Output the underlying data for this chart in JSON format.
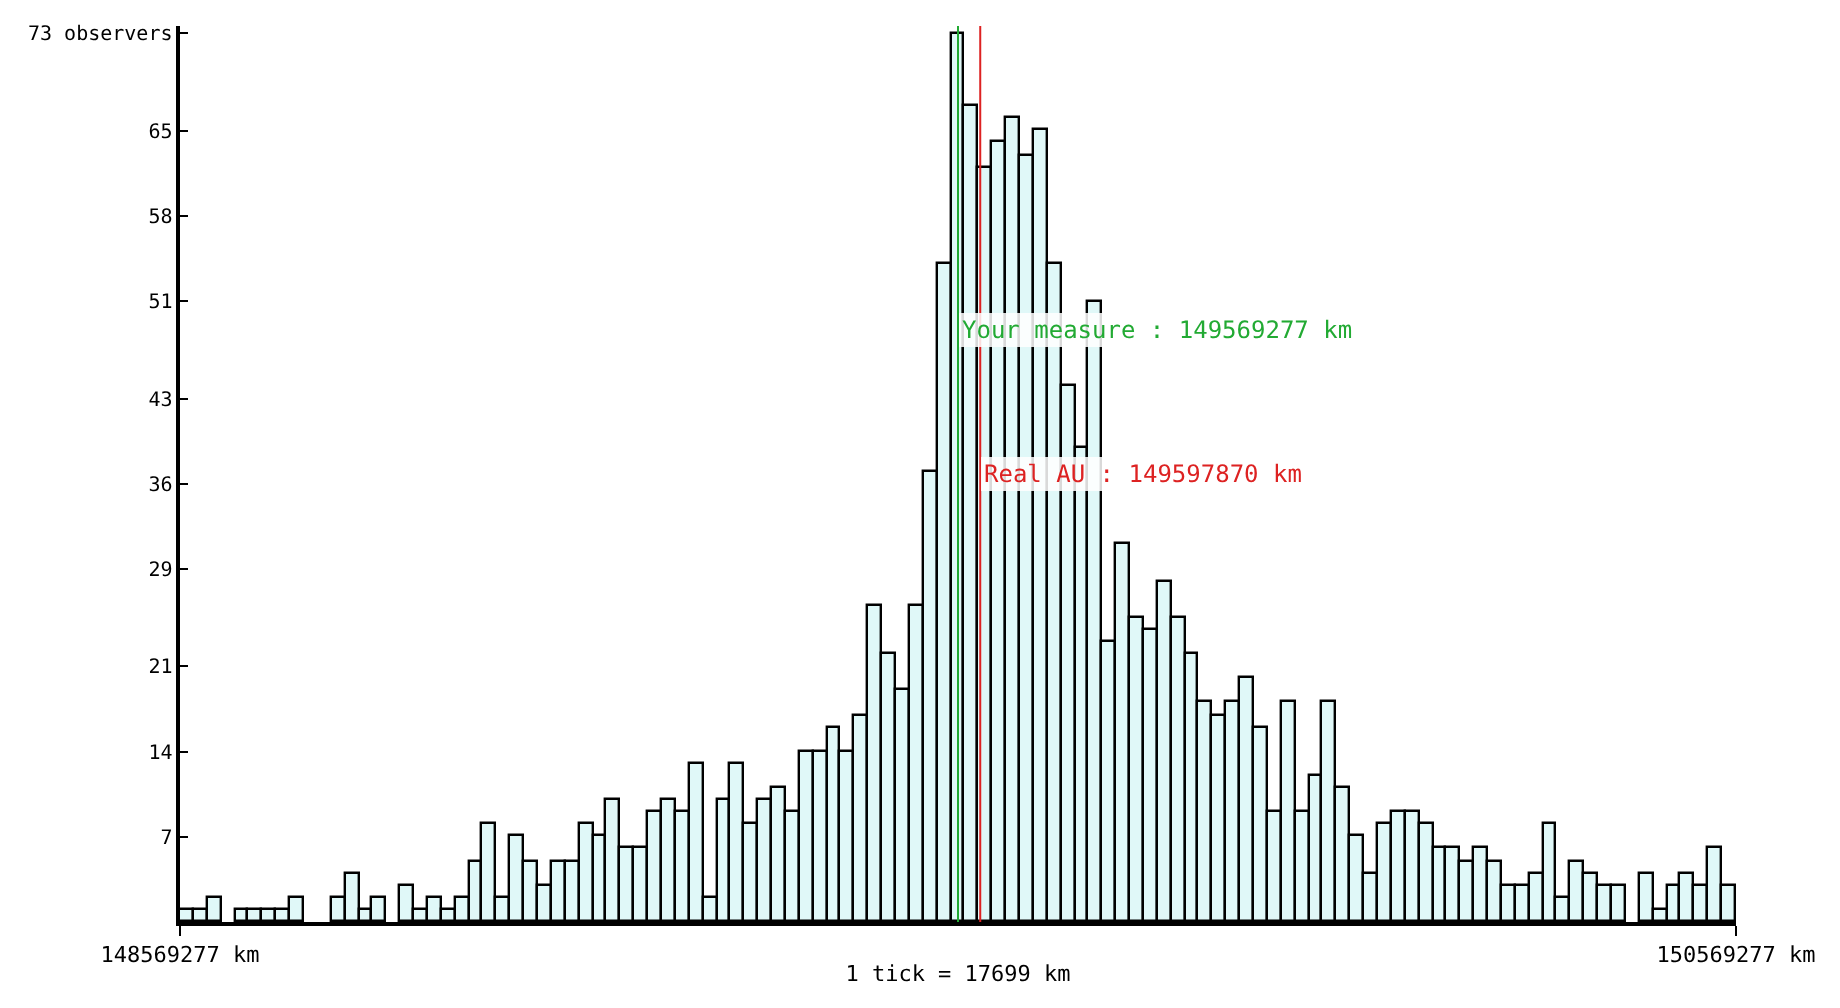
{
  "chart_data": {
    "type": "histogram",
    "xlabel": "1 tick = 17699 km",
    "bins": [
      148569277,
      148586976,
      148604675,
      148622374,
      148640073,
      148657772,
      148675471,
      148693170,
      148710869,
      148728568,
      148746267,
      148763966,
      148781665,
      148799364,
      148817063,
      148834762,
      148852461,
      148870160,
      148887859,
      148905558,
      148923257,
      148940956,
      148958655,
      148976354,
      148994053,
      149011752,
      149029451,
      149047150,
      149064849,
      149082548,
      149100247,
      149117946,
      149135645,
      149153344,
      149171043,
      149188742,
      149206441,
      149224140,
      149241839,
      149259538,
      149277237,
      149294936,
      149312635,
      149330334,
      149348033,
      149365732,
      149383431,
      149401130,
      149418829,
      149436528,
      149454227,
      149471926,
      149489625,
      149507324,
      149525023,
      149542722,
      149560421,
      149578120,
      149595819,
      149613518,
      149631217,
      149648916,
      149666615,
      149684314,
      149702013,
      149719712,
      149737411,
      149755110,
      149772809,
      149790508,
      149808207,
      149825906,
      149843605,
      149861304,
      149879003,
      149896702,
      149914401,
      149932100,
      149949799,
      149967498,
      149985197,
      150002896,
      150020595,
      150038294,
      150055993,
      150073692,
      150091391,
      150109090,
      150126789,
      150144488,
      150162187,
      150179886,
      150197585,
      150215284,
      150232983,
      150250682,
      150268381,
      150286080,
      150303779,
      150321478,
      150339177,
      150356876,
      150374575,
      150392274,
      150409973,
      150427672,
      150445371,
      150463070,
      150480769,
      150498468,
      150516167,
      150533866,
      150551565,
      150569264
    ],
    "values": [
      1,
      1,
      2,
      0,
      1,
      1,
      1,
      1,
      2,
      0,
      0,
      2,
      4,
      1,
      2,
      0,
      3,
      1,
      2,
      1,
      2,
      5,
      8,
      2,
      7,
      5,
      3,
      5,
      5,
      8,
      7,
      10,
      6,
      6,
      9,
      10,
      9,
      13,
      2,
      10,
      13,
      8,
      10,
      11,
      9,
      14,
      14,
      16,
      14,
      17,
      26,
      22,
      19,
      26,
      37,
      54,
      73,
      67,
      62,
      64,
      66,
      63,
      65,
      54,
      44,
      39,
      51,
      23,
      31,
      25,
      24,
      28,
      25,
      22,
      18,
      17,
      18,
      20,
      16,
      9,
      18,
      9,
      12,
      18,
      11,
      7,
      4,
      8,
      9,
      9,
      8,
      6,
      6,
      5,
      6,
      5,
      3,
      3,
      4,
      8,
      2,
      5,
      4,
      3,
      3,
      0,
      4,
      1,
      3,
      4,
      3,
      6,
      3
    ],
    "color": "#e0f8f8",
    "xlim": [
      148569277,
      150569277
    ],
    "xticks": [
      {
        "value": 148569277,
        "label": "148569277 km"
      },
      {
        "value": 150569277,
        "label": "150569277 km"
      }
    ],
    "ylim": [
      0,
      73.6
    ],
    "yticks": [
      7,
      14,
      21,
      29,
      36,
      43,
      51,
      58,
      65,
      {
        "value": 73,
        "label": "73 observers"
      }
    ],
    "ref_lines": [
      {
        "axis": "x",
        "value": 149569277,
        "label": "Your measure : 149569277 km",
        "color": "#22aa33"
      },
      {
        "axis": "x",
        "value": 149597870,
        "label": "Real AU : 149597870 km",
        "color": "#dd2222"
      }
    ]
  }
}
